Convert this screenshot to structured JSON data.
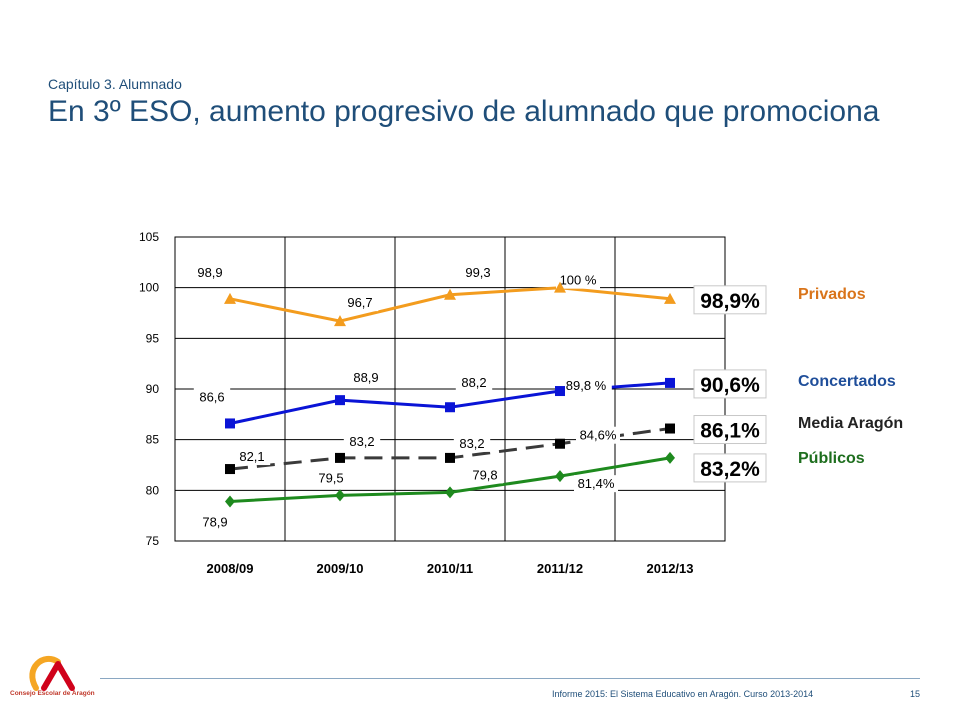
{
  "header": {
    "subtitle": "Capítulo 3. Alumnado",
    "title": "En 3º ESO, aumento progresivo de alumnado que promociona"
  },
  "footer": {
    "text": "Informe 2015: El Sistema Educativo en Aragón. Curso 2013-2014",
    "page": "15",
    "logo_text": "Consejo Escolar de Aragón"
  },
  "chart_data": {
    "type": "line",
    "categories": [
      "2008/09",
      "2009/10",
      "2010/11",
      "2011/12",
      "2012/13"
    ],
    "ylim": [
      75,
      105
    ],
    "yticks": [
      75,
      80,
      85,
      90,
      95,
      100,
      105
    ],
    "grid": true,
    "series": [
      {
        "name": "Privados",
        "values": [
          98.9,
          96.7,
          99.3,
          100,
          98.9
        ],
        "labels": [
          "98,9",
          "96,7",
          "99,3",
          "100 %",
          ""
        ],
        "final_label": "98,9%",
        "color": "#f39c1e",
        "marker": "triangle",
        "dashed": false
      },
      {
        "name": "Concertados",
        "values": [
          86.6,
          88.9,
          88.2,
          89.8,
          90.6
        ],
        "labels": [
          "86,6",
          "88,9",
          "88,2",
          "89,8 %",
          ""
        ],
        "final_label": "90,6%",
        "color": "#0a14d6",
        "marker": "square",
        "dashed": false
      },
      {
        "name": "Media Aragón",
        "values": [
          82.1,
          83.2,
          83.2,
          84.6,
          86.1
        ],
        "labels": [
          "82,1",
          "83,2",
          "83,2",
          "84,6%",
          ""
        ],
        "final_label": "86,1%",
        "color": "#3a3a3a",
        "marker": "square",
        "dashed": true
      },
      {
        "name": "Públicos",
        "values": [
          78.9,
          79.5,
          79.8,
          81.4,
          83.2
        ],
        "labels": [
          "78,9",
          "79,5",
          "79,8",
          "81,4%",
          ""
        ],
        "final_label": "83,2%",
        "color": "#1e8a1e",
        "marker": "diamond",
        "dashed": false
      }
    ],
    "legend": [
      {
        "name": "Privados",
        "color": "#d9741a"
      },
      {
        "name": "Concertados",
        "color": "#1f4e9a"
      },
      {
        "name": "Media Aragón",
        "color": "#222222"
      },
      {
        "name": "Públicos",
        "color": "#1e6e1e"
      }
    ]
  }
}
